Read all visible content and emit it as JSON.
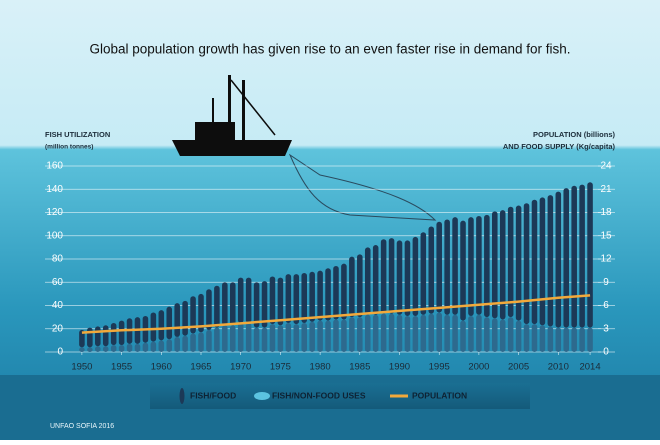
{
  "chart_data": {
    "type": "bar-line",
    "title": "Global population growth has given rise to an even faster rise in demand for fish.",
    "y_label": "FISH UTILIZATION",
    "y_unit": "(million tonnes)",
    "y2_label": "POPULATION (billions)",
    "y2_label_2": "AND FOOD SUPPLY (Kg/capita)",
    "source": "UNFAO SOFIA 2016",
    "xlim": [
      1948.5,
      2015
    ],
    "xticks": [
      1950,
      1955,
      1960,
      1965,
      1970,
      1975,
      1980,
      1985,
      1990,
      1995,
      2000,
      2005,
      2010,
      2014
    ],
    "ylim": [
      0,
      160
    ],
    "yticks": [
      0,
      20,
      40,
      60,
      80,
      100,
      120,
      140,
      160
    ],
    "y2lim": [
      0,
      24
    ],
    "y2ticks": [
      0,
      3,
      6,
      9,
      12,
      15,
      18,
      21,
      24
    ],
    "grid": true,
    "series": [
      {
        "name": "FISH/FOOD",
        "kind": "bar",
        "color": "#1c3957",
        "x": [
          1950,
          1951,
          1952,
          1953,
          1954,
          1955,
          1956,
          1957,
          1958,
          1959,
          1960,
          1961,
          1962,
          1963,
          1964,
          1965,
          1966,
          1967,
          1968,
          1969,
          1970,
          1971,
          1972,
          1973,
          1974,
          1975,
          1976,
          1977,
          1978,
          1979,
          1980,
          1981,
          1982,
          1983,
          1984,
          1985,
          1986,
          1987,
          1988,
          1989,
          1990,
          1991,
          1992,
          1993,
          1994,
          1995,
          1996,
          1997,
          1998,
          1999,
          2000,
          2001,
          2002,
          2003,
          2004,
          2005,
          2006,
          2007,
          2008,
          2009,
          2010,
          2011,
          2012,
          2013,
          2014
        ],
        "values": [
          15,
          17,
          17,
          18,
          19,
          21,
          22,
          23,
          23,
          25,
          26,
          28,
          29,
          30,
          32,
          33,
          35,
          36,
          37,
          37,
          39,
          39,
          39,
          40,
          41,
          41,
          42,
          43,
          43,
          43,
          43,
          45,
          46,
          48,
          52,
          54,
          58,
          60,
          64,
          65,
          64,
          65,
          68,
          71,
          75,
          78,
          82,
          84,
          86,
          85,
          85,
          88,
          92,
          94,
          95,
          99,
          104,
          107,
          110,
          113,
          117,
          120,
          122,
          123,
          125
        ]
      },
      {
        "name": "FISH/NON-FOOD USES",
        "kind": "bar",
        "color": "#2d6a8e",
        "x": [
          1950,
          1951,
          1952,
          1953,
          1954,
          1955,
          1956,
          1957,
          1958,
          1959,
          1960,
          1961,
          1962,
          1963,
          1964,
          1965,
          1966,
          1967,
          1968,
          1969,
          1970,
          1971,
          1972,
          1973,
          1974,
          1975,
          1976,
          1977,
          1978,
          1979,
          1980,
          1981,
          1982,
          1983,
          1984,
          1985,
          1986,
          1987,
          1988,
          1989,
          1990,
          1991,
          1992,
          1993,
          1994,
          1995,
          1996,
          1997,
          1998,
          1999,
          2000,
          2001,
          2002,
          2003,
          2004,
          2005,
          2006,
          2007,
          2008,
          2009,
          2010,
          2011,
          2012,
          2013,
          2014
        ],
        "values": [
          4,
          4,
          5,
          5,
          6,
          6,
          7,
          7,
          8,
          9,
          10,
          11,
          13,
          14,
          16,
          17,
          19,
          21,
          23,
          23,
          25,
          25,
          21,
          21,
          24,
          23,
          25,
          24,
          25,
          26,
          27,
          27,
          28,
          28,
          30,
          30,
          32,
          32,
          33,
          33,
          32,
          31,
          31,
          32,
          33,
          34,
          32,
          32,
          27,
          31,
          32,
          30,
          29,
          28,
          30,
          27,
          24,
          24,
          23,
          22,
          21,
          21,
          21,
          21,
          21
        ]
      },
      {
        "name": "POPULATION",
        "kind": "line",
        "axis": "y2",
        "color": "#f2a93b",
        "x": [
          1950,
          1955,
          1960,
          1965,
          1970,
          1975,
          1980,
          1985,
          1990,
          1995,
          2000,
          2005,
          2010,
          2014
        ],
        "values": [
          2.5,
          2.8,
          3.0,
          3.3,
          3.7,
          4.1,
          4.5,
          4.9,
          5.3,
          5.7,
          6.1,
          6.5,
          7.0,
          7.3
        ]
      }
    ]
  }
}
